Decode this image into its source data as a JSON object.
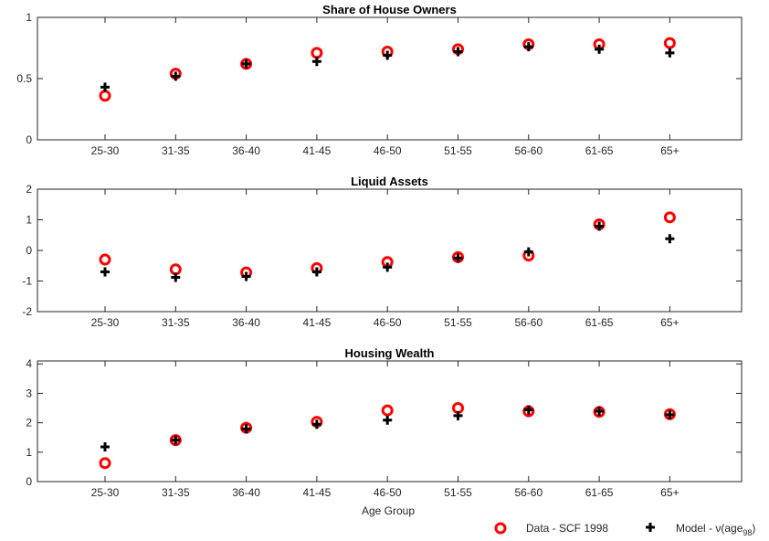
{
  "figure": {
    "xlabel": "Age Group",
    "legend": [
      {
        "label": "Data - SCF 1998",
        "marker": "circle",
        "color": "#ff0000"
      },
      {
        "label_main": "Model - ν(age",
        "label_sub": "98",
        "label_end": ")",
        "marker": "plus",
        "color": "#000000"
      }
    ],
    "legend_placement": "bottom-right"
  },
  "chart_data": [
    {
      "type": "scatter",
      "title": "Share of House Owners",
      "categories": [
        "25-30",
        "31-35",
        "36-40",
        "41-45",
        "46-50",
        "51-55",
        "56-60",
        "61-65",
        "65+"
      ],
      "ylim": [
        0,
        1
      ],
      "yticks": [
        0,
        0.5,
        1
      ],
      "ytick_labels": [
        "0",
        "0.5",
        "1"
      ],
      "grid": false,
      "series": [
        {
          "name": "Data - SCF 1998",
          "marker": "circle",
          "color": "#ff0000",
          "values": [
            0.36,
            0.54,
            0.62,
            0.71,
            0.72,
            0.74,
            0.78,
            0.78,
            0.79
          ]
        },
        {
          "name": "Model - ν(age98)",
          "marker": "plus",
          "color": "#000000",
          "values": [
            0.43,
            0.52,
            0.62,
            0.64,
            0.69,
            0.72,
            0.76,
            0.74,
            0.71
          ]
        }
      ]
    },
    {
      "type": "scatter",
      "title": "Liquid Assets",
      "categories": [
        "25-30",
        "31-35",
        "36-40",
        "41-45",
        "46-50",
        "51-55",
        "56-60",
        "61-65",
        "65+"
      ],
      "ylim": [
        -2,
        2
      ],
      "yticks": [
        -2,
        -1,
        0,
        1,
        2
      ],
      "ytick_labels": [
        "-2",
        "-1",
        "0",
        "1",
        "2"
      ],
      "grid": false,
      "series": [
        {
          "name": "Data - SCF 1998",
          "marker": "circle",
          "color": "#ff0000",
          "values": [
            -0.3,
            -0.62,
            -0.72,
            -0.58,
            -0.38,
            -0.22,
            -0.17,
            0.85,
            1.08
          ]
        },
        {
          "name": "Model - ν(age98)",
          "marker": "plus",
          "color": "#000000",
          "values": [
            -0.7,
            -0.88,
            -0.85,
            -0.7,
            -0.55,
            -0.25,
            -0.05,
            0.79,
            0.38
          ]
        }
      ]
    },
    {
      "type": "scatter",
      "title": "Housing Wealth",
      "categories": [
        "25-30",
        "31-35",
        "36-40",
        "41-45",
        "46-50",
        "51-55",
        "56-60",
        "61-65",
        "65+"
      ],
      "ylim": [
        0,
        4.1
      ],
      "yticks": [
        0,
        1,
        2,
        3,
        4
      ],
      "ytick_labels": [
        "0",
        "1",
        "2",
        "3",
        "4"
      ],
      "grid": false,
      "series": [
        {
          "name": "Data - SCF 1998",
          "marker": "circle",
          "color": "#ff0000",
          "values": [
            0.63,
            1.41,
            1.83,
            2.03,
            2.42,
            2.5,
            2.39,
            2.37,
            2.29
          ]
        },
        {
          "name": "Model - ν(age98)",
          "marker": "plus",
          "color": "#000000",
          "values": [
            1.18,
            1.41,
            1.79,
            1.95,
            2.09,
            2.24,
            2.44,
            2.39,
            2.27
          ]
        }
      ]
    }
  ]
}
